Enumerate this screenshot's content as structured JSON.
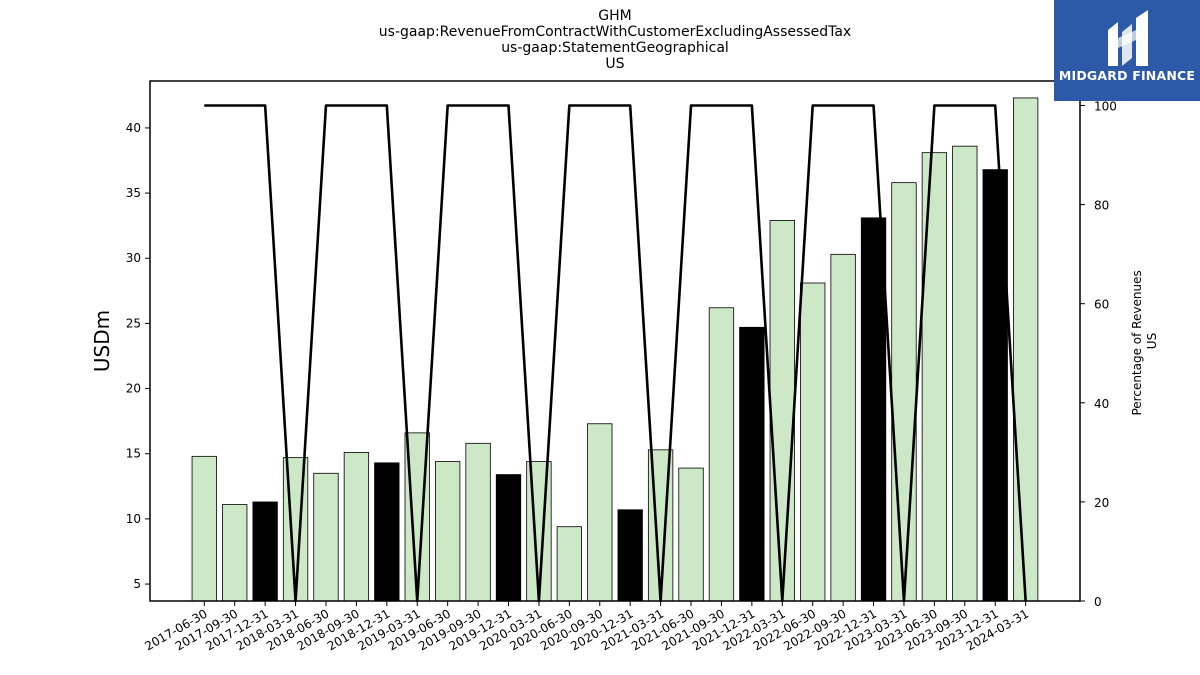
{
  "chart_data": {
    "type": "bar",
    "title_lines": [
      "GHM",
      "us-gaap:RevenueFromContractWithCustomerExcludingAssessedTax",
      "us-gaap:StatementGeographical",
      "US"
    ],
    "ylabel": "USDm",
    "y2label_lines": [
      "Percentage of Revenues",
      "US"
    ],
    "ylim": [
      3.7,
      43.6
    ],
    "yticks": [
      5,
      10,
      15,
      20,
      25,
      30,
      35,
      40
    ],
    "y2lim": [
      0,
      100
    ],
    "y2ticks": [
      0,
      20,
      40,
      60,
      80,
      100
    ],
    "categories": [
      "2017-06-30",
      "2017-09-30",
      "2017-12-31",
      "2018-03-31",
      "2018-06-30",
      "2018-09-30",
      "2018-12-31",
      "2019-03-31",
      "2019-06-30",
      "2019-09-30",
      "2019-12-31",
      "2020-03-31",
      "2020-06-30",
      "2020-09-30",
      "2020-12-31",
      "2021-03-31",
      "2021-06-30",
      "2021-09-30",
      "2021-12-31",
      "2022-03-31",
      "2022-06-30",
      "2022-09-30",
      "2022-12-31",
      "2023-03-31",
      "2023-06-30",
      "2023-09-30",
      "2023-12-31",
      "2024-03-31"
    ],
    "values": [
      14.8,
      11.1,
      11.3,
      14.7,
      13.5,
      15.1,
      14.3,
      16.6,
      14.4,
      15.8,
      13.4,
      14.4,
      9.4,
      17.3,
      10.7,
      15.3,
      13.9,
      26.2,
      24.7,
      32.9,
      28.1,
      30.3,
      33.1,
      35.8,
      38.1,
      38.6,
      36.8,
      42.3
    ],
    "bar_highlight": [
      false,
      false,
      true,
      false,
      false,
      false,
      true,
      false,
      false,
      false,
      true,
      false,
      false,
      false,
      true,
      false,
      false,
      false,
      true,
      false,
      false,
      false,
      true,
      false,
      false,
      false,
      true,
      false
    ],
    "percentage": [
      100,
      100,
      100,
      0,
      100,
      100,
      100,
      0,
      100,
      100,
      100,
      0,
      100,
      100,
      100,
      0,
      100,
      100,
      100,
      0,
      100,
      100,
      100,
      0,
      100,
      100,
      100,
      0
    ],
    "colors": {
      "bar": "#cce8c6",
      "bar_highlight": "#000000",
      "line": "#000000",
      "logo_bg": "#2c5aa8"
    }
  },
  "logo": {
    "text": "MIDGARD FINANCE"
  }
}
